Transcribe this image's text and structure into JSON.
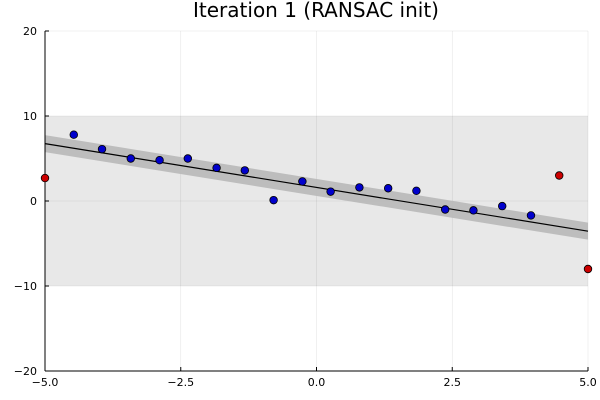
{
  "chart_data": {
    "type": "scatter",
    "title": "Iteration 1 (RANSAC init)",
    "xlabel": "",
    "ylabel": "",
    "xlim": [
      -5,
      5
    ],
    "ylim": [
      -20,
      20
    ],
    "x_ticks": [
      -5.0,
      -2.5,
      0.0,
      2.5,
      5.0
    ],
    "x_tick_labels": [
      "−5.0",
      "−2.5",
      "0.0",
      "2.5",
      "5.0"
    ],
    "y_ticks": [
      -20,
      -10,
      0,
      10,
      20
    ],
    "y_tick_labels": [
      "−20",
      "−10",
      "0",
      "10",
      "20"
    ],
    "grid": true,
    "legend": "none",
    "threshold_band": {
      "y_range": [
        -10,
        10
      ],
      "color": "#e8e8e8"
    },
    "fit_line": {
      "x": [
        -5,
        5
      ],
      "y": [
        6.75,
        -3.55
      ],
      "color": "#000000",
      "inlier_band_halfwidth": 1.0,
      "band_color": "#b8b8b8"
    },
    "series": [
      {
        "name": "inliers",
        "color": "#0000cc",
        "x": [
          -4.47,
          -3.95,
          -3.42,
          -2.89,
          -2.37,
          -1.84,
          -1.32,
          -0.79,
          -0.26,
          0.26,
          0.79,
          1.32,
          1.84,
          2.37,
          2.89,
          3.42,
          3.95
        ],
        "y": [
          7.8,
          6.1,
          5.0,
          4.8,
          5.0,
          3.9,
          3.6,
          0.1,
          2.3,
          1.1,
          1.6,
          1.5,
          1.2,
          -1.0,
          -1.1,
          -0.6,
          -1.7
        ]
      },
      {
        "name": "outliers",
        "color": "#cc0000",
        "x": [
          -5.0,
          4.47,
          5.0
        ],
        "y": [
          2.7,
          3.0,
          -8.0
        ]
      }
    ]
  }
}
